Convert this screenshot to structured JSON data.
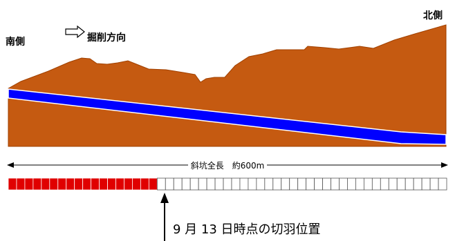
{
  "labels": {
    "south": "南側",
    "north": "北側",
    "direction": "掘削方向",
    "length": "斜坑全長　約600m",
    "position": "9 月 13 日時点の切羽位置"
  },
  "progress": {
    "total_segments": 53,
    "excavated_segments": 18
  },
  "colors": {
    "ground": "#C55A11",
    "tunnel": "#0000FF",
    "excavated": "#E00000",
    "remaining": "#FFFFFF"
  },
  "icons": {
    "direction_arrow": "hollow-right-arrow-icon",
    "position_marker": "up-arrow-icon"
  }
}
